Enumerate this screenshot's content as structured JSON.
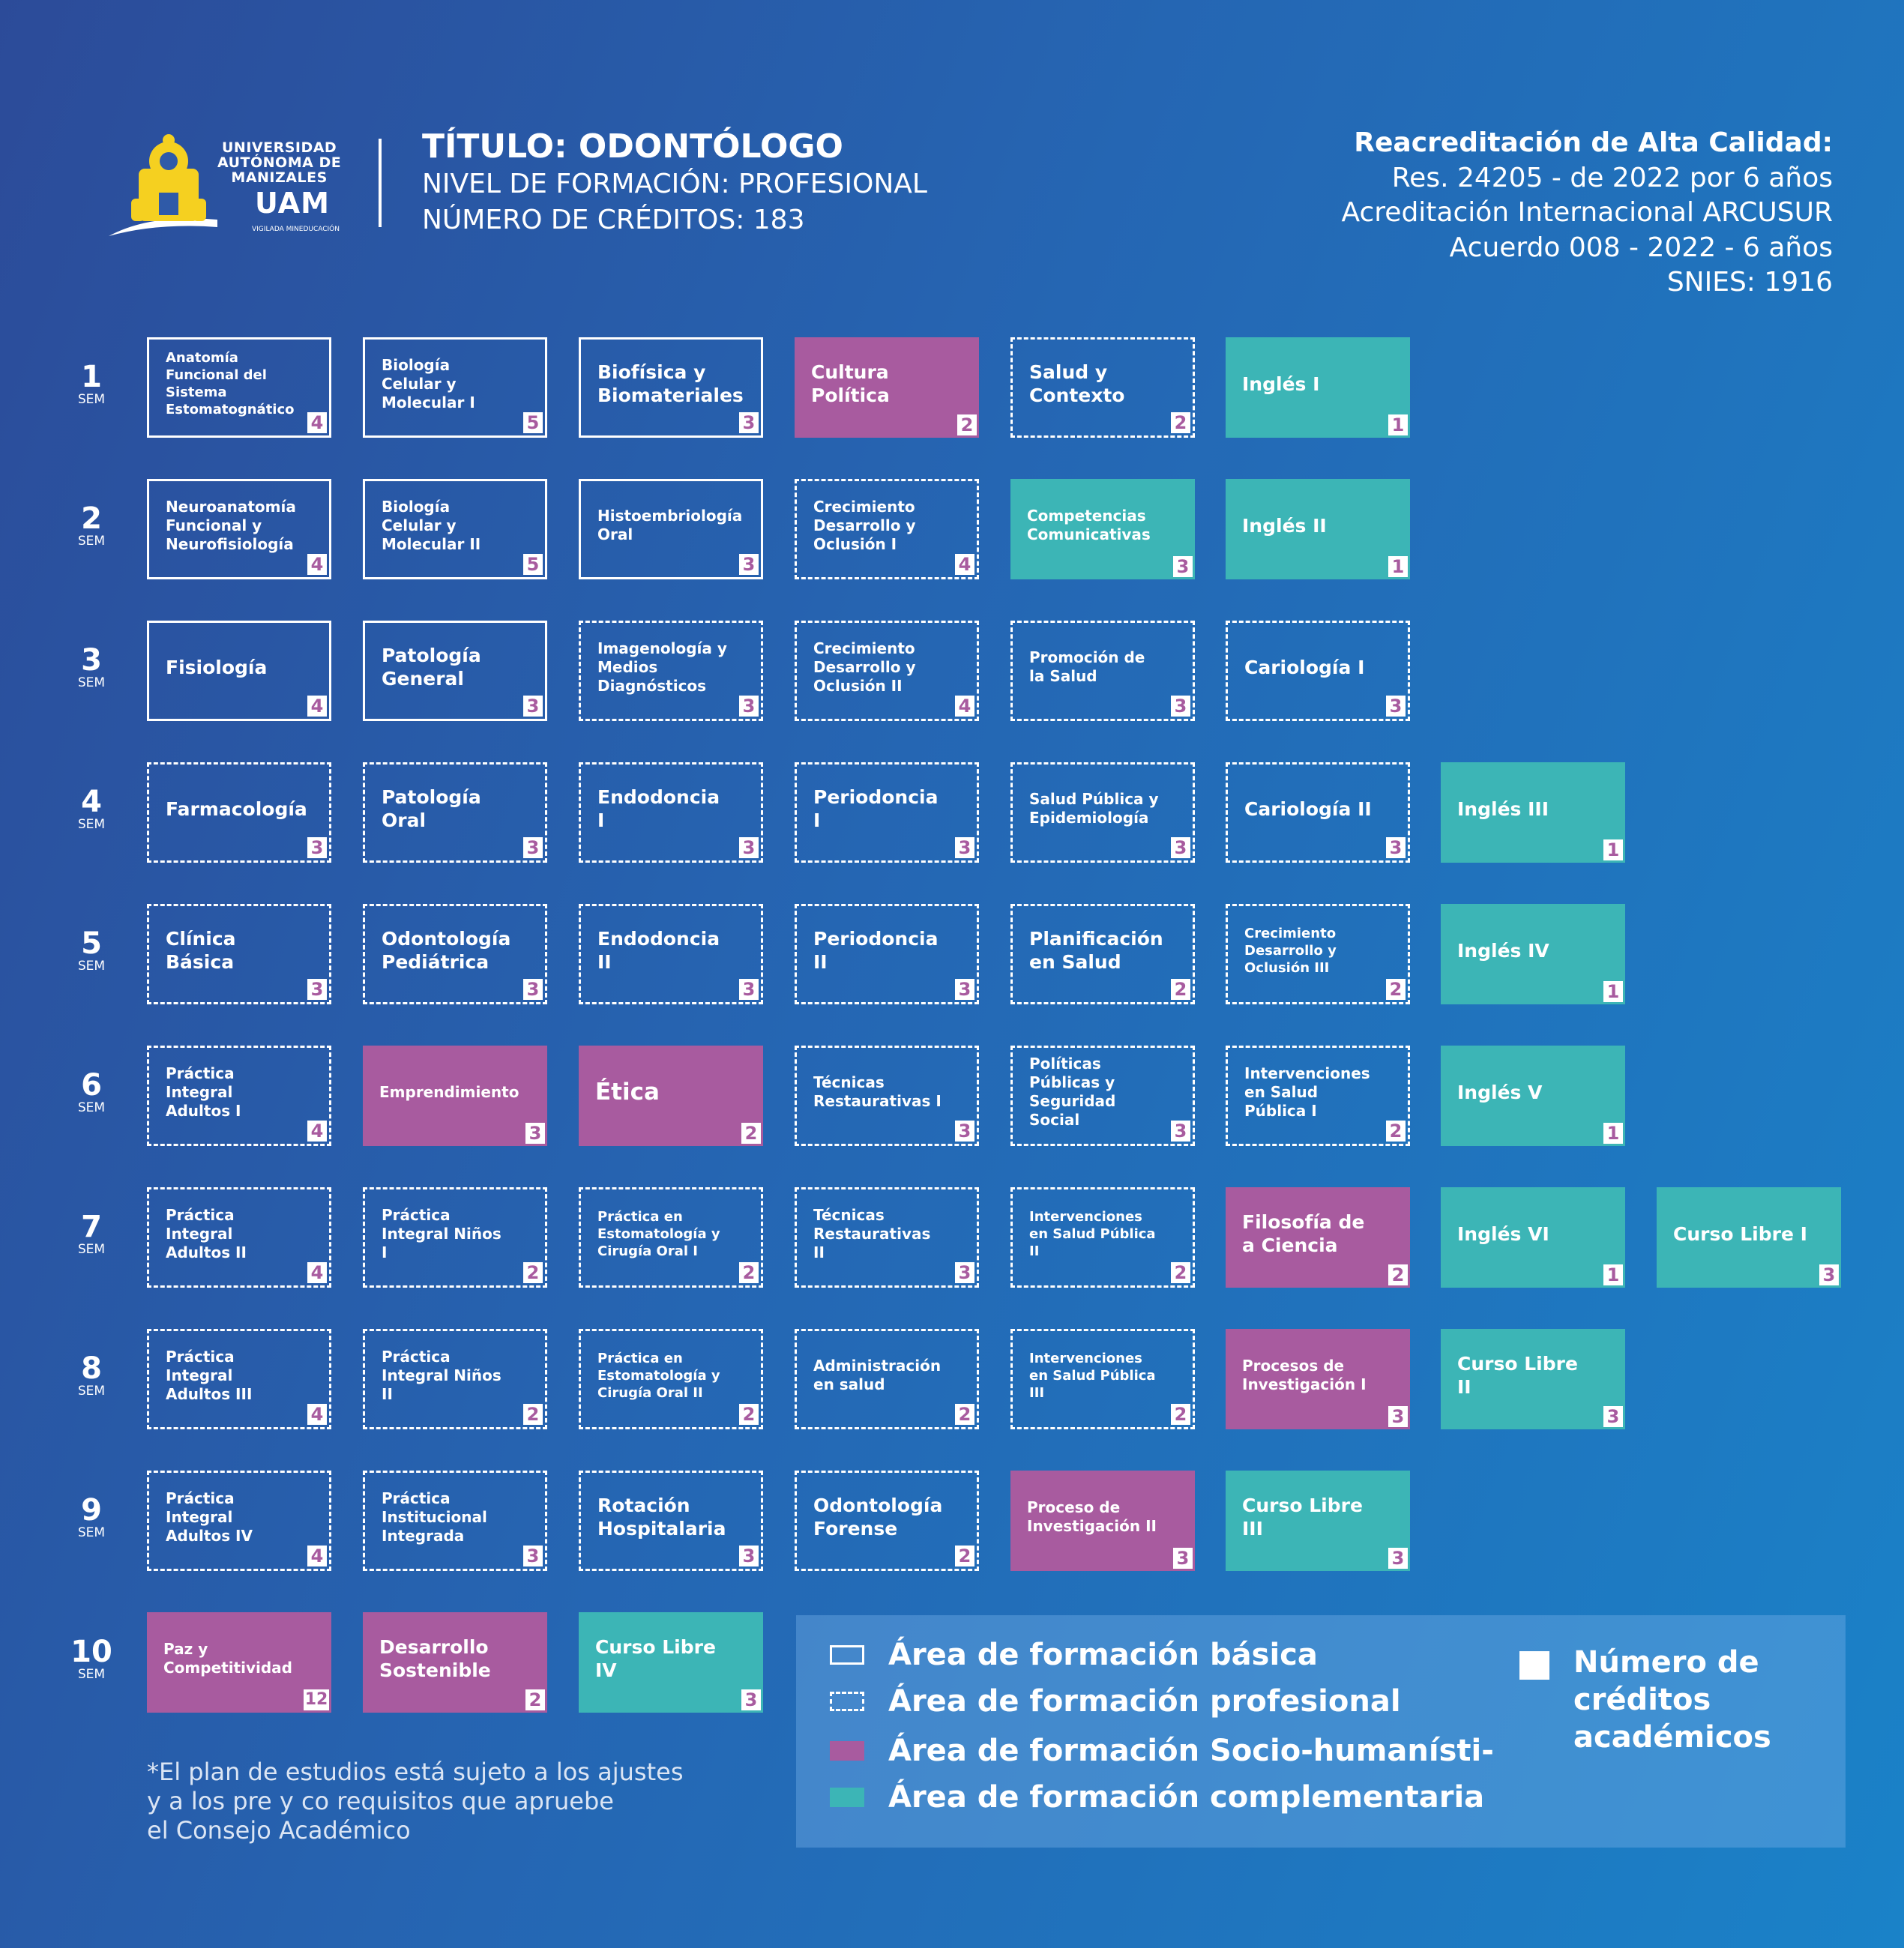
{
  "header": {
    "logo_lines": [
      "UNIVERSIDAD",
      "AUTÓNOMA DE",
      "MANIZALES"
    ],
    "logo_acronym": "UAM",
    "logo_tagline": "VIGILADA MINEDUCACIÓN",
    "title": "TÍTULO: ODONTÓLOGO",
    "level": "NIVEL DE FORMACIÓN: PROFESIONAL",
    "credits": "NÚMERO DE CRÉDITOS: 183",
    "accreditation": [
      "Reacreditación de Alta Calidad:",
      "Res. 24205 - de 2022 por 6 años",
      "Acreditación Internacional ARCUSUR",
      "Acuerdo 008 - 2022 - 6 años",
      "SNIES: 1916"
    ]
  },
  "colors": {
    "socio": "#a85b9f",
    "complementaria": "#3cb5b6",
    "background": "#2566b3"
  },
  "semesters": [
    {
      "n": "1",
      "label": "SEM",
      "courses": [
        {
          "name": "Anatomía Funcional del Sistema Estomatognático",
          "credits": "4",
          "area": "basica"
        },
        {
          "name": "Biología Celular y Molecular I",
          "credits": "5",
          "area": "basica"
        },
        {
          "name": "Biofísica y Biomateriales",
          "credits": "3",
          "area": "basica"
        },
        {
          "name": "Cultura Política",
          "credits": "2",
          "area": "socio"
        },
        {
          "name": "Salud y Contexto",
          "credits": "2",
          "area": "profesional"
        },
        {
          "name": "Inglés I",
          "credits": "1",
          "area": "complementaria"
        }
      ]
    },
    {
      "n": "2",
      "label": "SEM",
      "courses": [
        {
          "name": "Neuroanatomía Funcional y Neurofisiología",
          "credits": "4",
          "area": "basica"
        },
        {
          "name": "Biología Celular y Molecular II",
          "credits": "5",
          "area": "basica"
        },
        {
          "name": "Histoembriología Oral",
          "credits": "3",
          "area": "basica"
        },
        {
          "name": "Crecimiento Desarrollo y Oclusión I",
          "credits": "4",
          "area": "profesional"
        },
        {
          "name": "Competencias Comunicativas",
          "credits": "3",
          "area": "complementaria"
        },
        {
          "name": "Inglés II",
          "credits": "1",
          "area": "complementaria"
        }
      ]
    },
    {
      "n": "3",
      "label": "SEM",
      "courses": [
        {
          "name": "Fisiología",
          "credits": "4",
          "area": "basica"
        },
        {
          "name": "Patología General",
          "credits": "3",
          "area": "basica"
        },
        {
          "name": "Imagenología y Medios Diagnósticos",
          "credits": "3",
          "area": "profesional"
        },
        {
          "name": "Crecimiento Desarrollo y Oclusión II",
          "credits": "4",
          "area": "profesional"
        },
        {
          "name": "Promoción de la Salud",
          "credits": "3",
          "area": "profesional"
        },
        {
          "name": "Cariología I",
          "credits": "3",
          "area": "profesional"
        }
      ]
    },
    {
      "n": "4",
      "label": "SEM",
      "courses": [
        {
          "name": "Farmacología",
          "credits": "3",
          "area": "profesional"
        },
        {
          "name": "Patología Oral",
          "credits": "3",
          "area": "profesional"
        },
        {
          "name": "Endodoncia I",
          "credits": "3",
          "area": "profesional"
        },
        {
          "name": "Periodoncia I",
          "credits": "3",
          "area": "profesional"
        },
        {
          "name": "Salud Pública y Epidemiología",
          "credits": "3",
          "area": "profesional"
        },
        {
          "name": "Cariología II",
          "credits": "3",
          "area": "profesional"
        },
        {
          "name": "Inglés III",
          "credits": "1",
          "area": "complementaria"
        }
      ]
    },
    {
      "n": "5",
      "label": "SEM",
      "courses": [
        {
          "name": "Clínica Básica",
          "credits": "3",
          "area": "profesional"
        },
        {
          "name": "Odontología Pediátrica",
          "credits": "3",
          "area": "profesional"
        },
        {
          "name": "Endodoncia II",
          "credits": "3",
          "area": "profesional"
        },
        {
          "name": "Periodoncia II",
          "credits": "3",
          "area": "profesional"
        },
        {
          "name": "Planificación en Salud",
          "credits": "2",
          "area": "profesional"
        },
        {
          "name": "Crecimiento Desarrollo y Oclusión III",
          "credits": "2",
          "area": "profesional"
        },
        {
          "name": "Inglés IV",
          "credits": "1",
          "area": "complementaria"
        }
      ]
    },
    {
      "n": "6",
      "label": "SEM",
      "courses": [
        {
          "name": "Práctica Integral Adultos I",
          "credits": "4",
          "area": "profesional"
        },
        {
          "name": "Emprendimiento",
          "credits": "3",
          "area": "socio"
        },
        {
          "name": "Ética",
          "credits": "2",
          "area": "socio"
        },
        {
          "name": "Técnicas Restaurativas I",
          "credits": "3",
          "area": "profesional"
        },
        {
          "name": "Políticas Públicas y Seguridad Social",
          "credits": "3",
          "area": "profesional"
        },
        {
          "name": "Intervenciones en Salud Pública I",
          "credits": "2",
          "area": "profesional"
        },
        {
          "name": "Inglés V",
          "credits": "1",
          "area": "complementaria"
        }
      ]
    },
    {
      "n": "7",
      "label": "SEM",
      "courses": [
        {
          "name": "Práctica Integral Adultos II",
          "credits": "4",
          "area": "profesional"
        },
        {
          "name": "Práctica Integral Niños I",
          "credits": "2",
          "area": "profesional"
        },
        {
          "name": "Práctica en Estomatología y Cirugía Oral I",
          "credits": "2",
          "area": "profesional"
        },
        {
          "name": "Técnicas Restaurativas II",
          "credits": "3",
          "area": "profesional"
        },
        {
          "name": "Intervenciones en Salud Pública II",
          "credits": "2",
          "area": "profesional"
        },
        {
          "name": "Filosofía de a Ciencia",
          "credits": "2",
          "area": "socio"
        },
        {
          "name": "Inglés VI",
          "credits": "1",
          "area": "complementaria"
        },
        {
          "name": "Curso Libre I",
          "credits": "3",
          "area": "complementaria"
        }
      ]
    },
    {
      "n": "8",
      "label": "SEM",
      "courses": [
        {
          "name": "Práctica Integral Adultos III",
          "credits": "4",
          "area": "profesional"
        },
        {
          "name": "Práctica Integral Niños II",
          "credits": "2",
          "area": "profesional"
        },
        {
          "name": "Práctica en Estomatología y Cirugía Oral II",
          "credits": "2",
          "area": "profesional"
        },
        {
          "name": "Administración en salud",
          "credits": "2",
          "area": "profesional"
        },
        {
          "name": "Intervenciones en Salud Pública III",
          "credits": "2",
          "area": "profesional"
        },
        {
          "name": "Procesos de Investigación I",
          "credits": "3",
          "area": "socio"
        },
        {
          "name": "Curso Libre II",
          "credits": "3",
          "area": "complementaria"
        }
      ]
    },
    {
      "n": "9",
      "label": "SEM",
      "courses": [
        {
          "name": "Práctica Integral Adultos IV",
          "credits": "4",
          "area": "profesional"
        },
        {
          "name": "Práctica Institucional Integrada",
          "credits": "3",
          "area": "profesional"
        },
        {
          "name": "Rotación Hospitalaria",
          "credits": "3",
          "area": "profesional"
        },
        {
          "name": "Odontología Forense",
          "credits": "2",
          "area": "profesional"
        },
        {
          "name": "Proceso de Investigación II",
          "credits": "3",
          "area": "socio"
        },
        {
          "name": "Curso Libre III",
          "credits": "3",
          "area": "complementaria"
        }
      ]
    },
    {
      "n": "10",
      "label": "SEM",
      "courses": [
        {
          "name": "Paz y Competitividad",
          "credits": "12",
          "area": "socio"
        },
        {
          "name": "Desarrollo Sostenible",
          "credits": "2",
          "area": "socio"
        },
        {
          "name": "Curso Libre IV",
          "credits": "3",
          "area": "complementaria"
        }
      ]
    }
  ],
  "legend": {
    "basica": "Área de formación básica",
    "profesional": "Área de formación profesional",
    "socio": "Área de formación Socio-humanísti-",
    "complementaria": "Área de formación complementaria",
    "credits": "Número de créditos académicos"
  },
  "note": [
    "*El plan de estudios está sujeto a los ajustes",
    "y a los pre y co requisitos que apruebe",
    "el Consejo Académico"
  ]
}
